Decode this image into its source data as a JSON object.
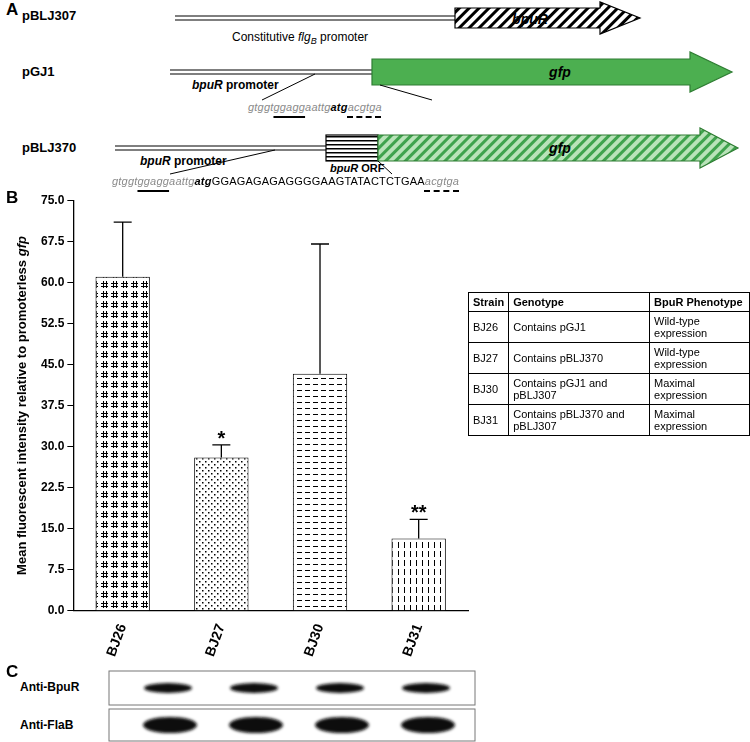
{
  "figure": {
    "panel_labels": [
      "A",
      "B",
      "C"
    ]
  },
  "panel_a": {
    "constructs": [
      {
        "name": "pBLJ307",
        "promoter_label": [
          {
            "text": "Constitutive "
          },
          {
            "text": "flg",
            "style": "italic"
          },
          {
            "text": "B",
            "style": "italic subscript"
          },
          {
            "text": " promoter"
          }
        ],
        "gene_label": [
          {
            "text": "bpuR",
            "style": "italic bold"
          }
        ]
      },
      {
        "name": "pGJ1",
        "promoter_label": [
          {
            "text": "bpuR",
            "style": "italic bold"
          },
          {
            "text": " promoter",
            "style": "bold"
          }
        ],
        "gene_label": [
          {
            "text": "gfp",
            "style": "italic bold"
          }
        ],
        "sequence": [
          {
            "text": "gtggt",
            "style": "grey"
          },
          {
            "text": "ggagg",
            "style": "grey underline"
          },
          {
            "text": "aattg",
            "style": "grey"
          },
          {
            "text": "atg",
            "style": "italic bold"
          },
          {
            "text": "acgtga",
            "style": "grey dashed"
          }
        ]
      },
      {
        "name": "pBLJ370",
        "promoter_label": [
          {
            "text": "bpuR",
            "style": "italic bold"
          },
          {
            "text": " promoter",
            "style": "bold"
          }
        ],
        "orf_label": [
          {
            "text": "bpuR",
            "style": "italic bold"
          },
          {
            "text": " ORF",
            "style": "bold"
          }
        ],
        "gene_label": [
          {
            "text": "gfp",
            "style": "italic bold"
          }
        ],
        "sequence": [
          {
            "text": "gtggt",
            "style": "grey"
          },
          {
            "text": "ggagg",
            "style": "grey underline"
          },
          {
            "text": "aattg",
            "style": "grey"
          },
          {
            "text": "atg",
            "style": "italic bold"
          },
          {
            "text": "GGAGAGAGAGGGGAAGTATACTCTGAA"
          },
          {
            "text": "acgtga",
            "style": "grey dashed"
          }
        ]
      }
    ]
  },
  "chart_data": {
    "type": "bar",
    "categories": [
      "BJ26",
      "BJ27",
      "BJ30",
      "BJ31"
    ],
    "values": [
      61.0,
      28.0,
      43.3,
      13.2
    ],
    "errors": [
      10.0,
      2.3,
      23.7,
      3.5
    ],
    "color": "#000000",
    "ylabel": [
      {
        "text": "Mean fluorescent intensity relative to promoterless "
      },
      {
        "text": "gfp",
        "style": "italic"
      }
    ],
    "ylim": [
      0,
      75
    ],
    "yticks": [
      {
        "value": 0,
        "label": "0.0"
      },
      7.5,
      {
        "value": 15,
        "label": "15.0"
      },
      22.5,
      {
        "value": 30,
        "label": "30.0"
      },
      37.5,
      {
        "value": 45,
        "label": "45.0"
      },
      52.5,
      {
        "value": 60,
        "label": "60.0"
      },
      67.5,
      {
        "value": 75,
        "label": "75.0"
      }
    ],
    "grid": false,
    "annotations": [
      {
        "category": "BJ27",
        "text": "*"
      },
      {
        "category": "BJ31",
        "text": "**"
      }
    ]
  },
  "table": {
    "header": [
      "Strain",
      "Genotype",
      "BpuR Phenotype"
    ],
    "rows": [
      [
        "BJ26",
        "Contains pGJ1",
        "Wild-type expression"
      ],
      [
        "BJ27",
        "Contains pBLJ370",
        "Wild-type expression"
      ],
      [
        "BJ30",
        "Contains pGJ1 and pBLJ307",
        "Maximal expression"
      ],
      [
        "BJ31",
        "Contains pBLJ370 and pBLJ307",
        "Maximal expression"
      ]
    ]
  },
  "panel_c": {
    "blot_labels": [
      "Anti-BpuR",
      "Anti-FlaB"
    ]
  }
}
